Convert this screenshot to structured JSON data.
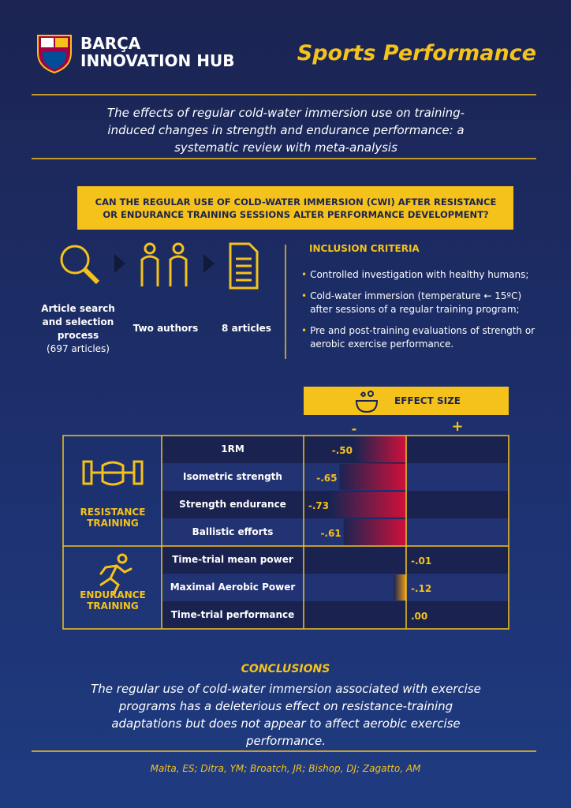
{
  "header": {
    "brand_line1": "BARÇA",
    "brand_line2": "INNOVATION HUB",
    "section": "Sports Performance"
  },
  "article_title": "The effects of regular cold-water immersion use on training-induced changes in strength and endurance performance: a systematic review with meta-analysis",
  "question": "CAN THE REGULAR USE OF COLD-WATER IMMERSION (CWI) AFTER RESISTANCE OR ENDURANCE TRAINING SESSIONS ALTER PERFORMANCE DEVELOPMENT?",
  "process": [
    {
      "label": "Article search and selection process",
      "note": "(697 articles)"
    },
    {
      "label": "Two authors"
    },
    {
      "label": "8 articles"
    }
  ],
  "inclusion": {
    "title": "INCLUSION CRITERIA",
    "items": [
      "Controlled investigation with healthy humans;",
      "Cold-water immersion (temperature ← 15ºC) after sessions of a regular training program;",
      "Pre and post-training evaluations of strength or aerobic exercise performance."
    ]
  },
  "chart_data": {
    "type": "bar",
    "title": "EFFECT SIZE",
    "negative_label": "-",
    "positive_label": "+",
    "xlim": [
      -1,
      1
    ],
    "groups": [
      {
        "name": "RESISTANCE TRAINING",
        "color": "#d0103a",
        "categories": [
          "1RM",
          "Isometric strength",
          "Strength endurance",
          "Ballistic efforts"
        ],
        "values": [
          -0.5,
          -0.65,
          -0.73,
          -0.61
        ],
        "value_labels": [
          "-.50",
          "-.65",
          "-.73",
          "-.61"
        ]
      },
      {
        "name": "ENDURANCE TRAINING",
        "color": "#f39c12",
        "categories": [
          "Time-trial mean power",
          "Maximal Aerobic Power",
          "Time-trial performance"
        ],
        "values": [
          -0.01,
          -0.12,
          0.0
        ],
        "value_labels": [
          "-.01",
          "-.12",
          ".00"
        ]
      }
    ]
  },
  "conclusions": {
    "title": "CONCLUSIONS",
    "text": "The regular use of cold-water immersion associated with exercise programs has a deleterious effect on resistance-training adaptations but does not appear to affect aerobic exercise performance."
  },
  "authors": "Malta, ES; Ditra, YM; Broatch, JR; Bishop, DJ; Zagatto, AM"
}
